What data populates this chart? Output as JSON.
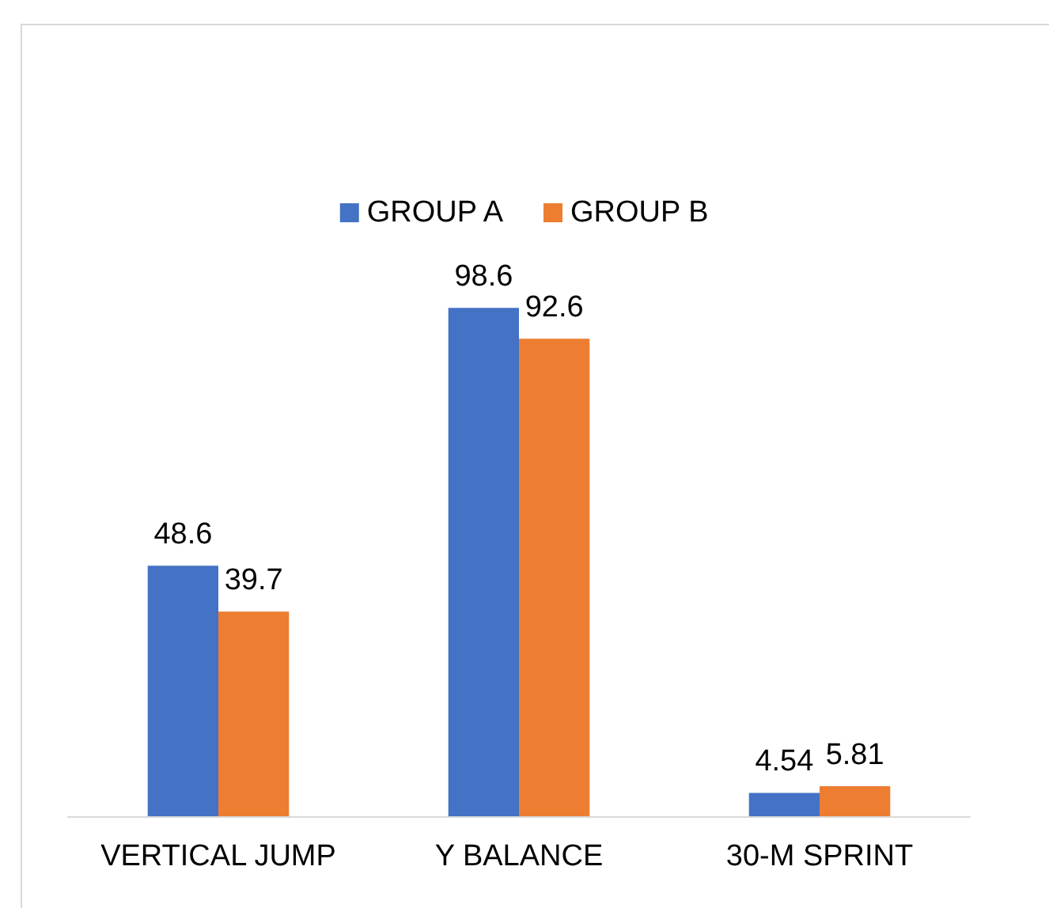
{
  "chart_data": {
    "type": "bar",
    "categories": [
      "VERTICAL JUMP",
      "Y BALANCE",
      "30-M SPRINT"
    ],
    "series": [
      {
        "name": "GROUP A",
        "color": "#4472c4",
        "values": [
          48.6,
          98.6,
          4.54
        ]
      },
      {
        "name": "GROUP B",
        "color": "#ed7d31",
        "values": [
          39.7,
          92.6,
          5.81
        ]
      }
    ],
    "data_labels": true,
    "legend": "top"
  }
}
